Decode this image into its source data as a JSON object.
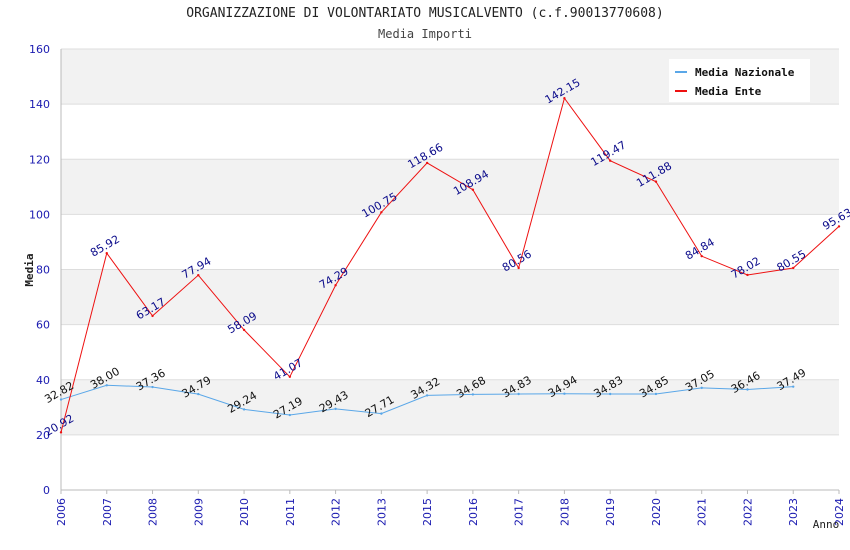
{
  "colors": {
    "national": "#5aa7e8",
    "entity": "#ee1111",
    "entity_labels": "#0a0a8a",
    "national_labels": "#111111",
    "ticks": "#1a1ab0",
    "band": "#f2f2f2",
    "grid": "#dddddd"
  },
  "chart_data": {
    "type": "line",
    "title": "ORGANIZZAZIONE DI VOLONTARIATO MUSICALVENTO (c.f.90013770608)",
    "subtitle": "Media Importi",
    "xlabel": "Anno",
    "ylabel": "Media",
    "ylim": [
      0,
      160
    ],
    "yticks": [
      0,
      20,
      40,
      60,
      80,
      100,
      120,
      140,
      160
    ],
    "grid": true,
    "legend_position": "top-right",
    "x": [
      "2006",
      "2007",
      "2008",
      "2009",
      "2010",
      "2011",
      "2012",
      "2013",
      "2015",
      "2016",
      "2017",
      "2018",
      "2019",
      "2020",
      "2021",
      "2022",
      "2023",
      "2024"
    ],
    "series": [
      {
        "name": "Media Nazionale",
        "values": [
          32.82,
          38.0,
          37.36,
          34.79,
          29.24,
          27.19,
          29.43,
          27.71,
          34.32,
          34.68,
          34.83,
          34.94,
          34.83,
          34.85,
          37.05,
          36.46,
          37.49,
          null
        ],
        "labels": [
          "32.82",
          "38.00",
          "37.36",
          "34.79",
          "29.24",
          "27.19",
          "29.43",
          "27.71",
          "34.32",
          "34.68",
          "34.83",
          "34.94",
          "34.83",
          "34.85",
          "37.05",
          "36.46",
          "37.49",
          ""
        ]
      },
      {
        "name": "Media Ente",
        "values": [
          20.92,
          85.92,
          63.17,
          77.94,
          58.09,
          41.07,
          74.29,
          100.75,
          118.66,
          108.94,
          80.56,
          142.15,
          119.47,
          111.88,
          84.84,
          78.02,
          80.55,
          95.63
        ],
        "labels": [
          "20.92",
          "85.92",
          "63.17",
          "77.94",
          "58.09",
          "41.07",
          "74.29",
          "100.75",
          "118.66",
          "108.94",
          "80.56",
          "142.15",
          "119.47",
          "111.88",
          "84.84",
          "78.02",
          "80.55",
          "95.63"
        ]
      }
    ]
  }
}
